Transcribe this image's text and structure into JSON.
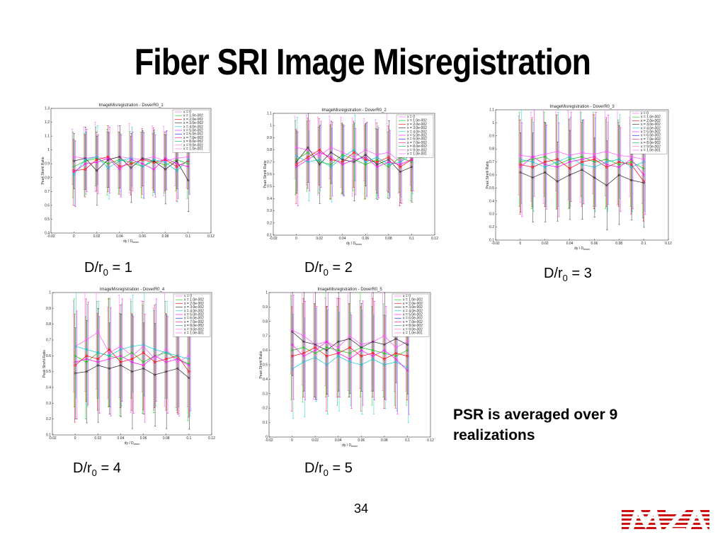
{
  "slide": {
    "title": "Fiber SRI Image Misregistration",
    "note_line1": "PSR is averaged over 9",
    "note_line2": "realizations",
    "page_number": "34"
  },
  "captions": [
    {
      "prefix": "D/r",
      "sub": "0",
      "suffix": " = 1"
    },
    {
      "prefix": "D/r",
      "sub": "0",
      "suffix": " = 2"
    },
    {
      "prefix": "D/r",
      "sub": "0",
      "suffix": " = 3"
    },
    {
      "prefix": "D/r",
      "sub": "0",
      "suffix": " = 4"
    },
    {
      "prefix": "D/r",
      "sub": "0",
      "suffix": " = 5"
    }
  ],
  "colors": {
    "series": [
      "#ff55ff",
      "#00cc00",
      "#ff0000",
      "#222222",
      "#00cccc",
      "#ff00ff",
      "#0000ff",
      "#ff0080",
      "#00aa66",
      "#ff66cc"
    ],
    "logo_red": "#cc1111"
  },
  "chart_data": [
    {
      "type": "line",
      "title": "ImageMisregistration - DoverR0_1",
      "xlabel": "dy / D",
      "xlabel_sub": "beam",
      "ylabel": "Peak Strehl Ratio",
      "xlim": [
        -0.02,
        0.12
      ],
      "ylim": [
        0.4,
        1.3
      ],
      "xticks": [
        "-0.02",
        "0",
        "0.02",
        "0.04",
        "0.06",
        "0.08",
        "0.1",
        "0.12"
      ],
      "yticks": [
        "0.4",
        "0.5",
        "0.6",
        "0.7",
        "0.8",
        "0.9",
        "1",
        "1.1",
        "1.2",
        "1.3"
      ],
      "legend": [
        "x = 0",
        "x = 1.0e-002",
        "x = 2.0e-002",
        "x = 3.0e-002",
        "x = 4.0e-002",
        "x = 5.0e-002",
        "x = 6.0e-002",
        "x = 7.0e-002",
        "x = 8.0e-002",
        "x = 9.0e-002",
        "x = 1.0e-001"
      ],
      "x": [
        0,
        0.01,
        0.02,
        0.03,
        0.04,
        0.05,
        0.06,
        0.07,
        0.08,
        0.09,
        0.1
      ],
      "series": [
        {
          "values": [
            0.95,
            0.94,
            0.95,
            0.93,
            0.95,
            0.94,
            0.93,
            0.95,
            0.92,
            0.94,
            0.95
          ]
        },
        {
          "values": [
            0.88,
            0.92,
            0.94,
            0.9,
            0.93,
            0.91,
            0.88,
            0.92,
            0.89,
            0.93,
            0.9
          ]
        },
        {
          "values": [
            0.85,
            0.86,
            0.93,
            0.95,
            0.88,
            0.9,
            0.93,
            0.91,
            0.93,
            0.88,
            0.92
          ]
        },
        {
          "values": [
            0.92,
            0.94,
            0.85,
            0.93,
            0.95,
            0.87,
            0.94,
            0.92,
            0.86,
            0.92,
            0.78
          ]
        },
        {
          "values": [
            0.82,
            0.93,
            0.95,
            0.87,
            0.92,
            0.94,
            0.88,
            0.93,
            0.91,
            0.85,
            0.93
          ]
        },
        {
          "values": [
            0.84,
            0.9,
            0.91,
            0.94,
            0.86,
            0.93,
            0.9,
            0.86,
            0.94,
            0.9,
            0.88
          ]
        }
      ],
      "err": 0.25
    },
    {
      "type": "line",
      "title": "ImageMisregistration - DoverR0_2",
      "xlabel": "dy / D",
      "xlabel_sub": "beam",
      "ylabel": "Peak Strehl Ratio",
      "xlim": [
        -0.02,
        0.12
      ],
      "ylim": [
        0.1,
        1.1
      ],
      "xticks": [
        "-0.02",
        "0",
        "0.02",
        "0.04",
        "0.06",
        "0.08",
        "0.1",
        "0.12"
      ],
      "yticks": [
        "0.1",
        "0.2",
        "0.3",
        "0.4",
        "0.5",
        "0.6",
        "0.7",
        "0.8",
        "0.9",
        "1",
        "1.1"
      ],
      "legend": [
        "x = 0",
        "x = 1.0e-002",
        "x = 2.0e-002",
        "x = 3.0e-002",
        "x = 4.0e-002",
        "x = 5.0e-002",
        "x = 6.0e-002",
        "x = 7.0e-002",
        "x = 8.0e-002",
        "x = 9.0e-002",
        "x = 1.0e-001"
      ],
      "x": [
        0,
        0.01,
        0.02,
        0.03,
        0.04,
        0.05,
        0.06,
        0.07,
        0.08,
        0.09,
        0.1
      ],
      "series": [
        {
          "values": [
            0.82,
            0.8,
            0.75,
            0.82,
            0.78,
            0.74,
            0.8,
            0.76,
            0.78,
            0.7,
            0.8
          ]
        },
        {
          "values": [
            0.72,
            0.78,
            0.7,
            0.68,
            0.76,
            0.72,
            0.68,
            0.72,
            0.66,
            0.74,
            0.7
          ]
        },
        {
          "values": [
            0.68,
            0.74,
            0.8,
            0.72,
            0.7,
            0.78,
            0.72,
            0.7,
            0.74,
            0.66,
            0.72
          ]
        },
        {
          "values": [
            0.7,
            0.82,
            0.68,
            0.78,
            0.72,
            0.7,
            0.76,
            0.68,
            0.72,
            0.62,
            0.66
          ]
        },
        {
          "values": [
            0.75,
            0.7,
            0.72,
            0.66,
            0.74,
            0.8,
            0.7,
            0.74,
            0.68,
            0.7,
            0.76
          ]
        },
        {
          "values": [
            0.66,
            0.72,
            0.78,
            0.74,
            0.68,
            0.72,
            0.74,
            0.66,
            0.7,
            0.68,
            0.72
          ]
        }
      ],
      "err": 0.32
    },
    {
      "type": "line",
      "title": "ImageMisregistration - DoverR0_3",
      "xlabel": "dy / D",
      "xlabel_sub": "beam",
      "ylabel": "Peak Strehl Ratio",
      "xlim": [
        -0.02,
        0.12
      ],
      "ylim": [
        0.1,
        1.1
      ],
      "xticks": [
        "-0.02",
        "0",
        "0.02",
        "0.04",
        "0.06",
        "0.08",
        "0.1",
        "0.12"
      ],
      "yticks": [
        "0.1",
        "0.2",
        "0.3",
        "0.4",
        "0.5",
        "0.6",
        "0.7",
        "0.8",
        "0.9",
        "1",
        "1.1"
      ],
      "legend": [
        "x = 0",
        "x = 1.0e-002",
        "x = 2.0e-002",
        "x = 3.0e-002",
        "x = 4.0e-002",
        "x = 5.0e-002",
        "x = 6.0e-002",
        "x = 7.0e-002",
        "x = 8.0e-002",
        "x = 9.0e-002",
        "x = 1.0e-001"
      ],
      "x": [
        0,
        0.01,
        0.02,
        0.03,
        0.04,
        0.05,
        0.06,
        0.07,
        0.08,
        0.09,
        0.1
      ],
      "series": [
        {
          "values": [
            0.75,
            0.74,
            0.76,
            0.78,
            0.75,
            0.77,
            0.76,
            0.78,
            0.75,
            0.74,
            0.72
          ]
        },
        {
          "values": [
            0.7,
            0.72,
            0.74,
            0.68,
            0.72,
            0.74,
            0.7,
            0.72,
            0.68,
            0.7,
            0.65
          ]
        },
        {
          "values": [
            0.68,
            0.66,
            0.7,
            0.72,
            0.65,
            0.7,
            0.72,
            0.66,
            0.7,
            0.68,
            0.55
          ]
        },
        {
          "values": [
            0.62,
            0.58,
            0.62,
            0.55,
            0.6,
            0.64,
            0.58,
            0.52,
            0.6,
            0.56,
            0.54
          ]
        },
        {
          "values": [
            0.72,
            0.7,
            0.66,
            0.7,
            0.74,
            0.68,
            0.66,
            0.7,
            0.72,
            0.66,
            0.7
          ]
        },
        {
          "values": [
            0.66,
            0.74,
            0.68,
            0.66,
            0.7,
            0.72,
            0.74,
            0.68,
            0.66,
            0.72,
            0.6
          ]
        }
      ],
      "err": 0.38
    },
    {
      "type": "line",
      "title": "ImageMisregistration - DoverR0_4",
      "xlabel": "dy / D",
      "xlabel_sub": "beam",
      "ylabel": "Peak Strehl Ratio",
      "xlim": [
        -0.02,
        0.12
      ],
      "ylim": [
        0.1,
        1.0
      ],
      "xticks": [
        "-0.02",
        "0",
        "0.02",
        "0.04",
        "0.06",
        "0.08",
        "0.1",
        "0.12"
      ],
      "yticks": [
        "0.1",
        "0.2",
        "0.3",
        "0.4",
        "0.5",
        "0.6",
        "0.7",
        "0.8",
        "0.9",
        "1"
      ],
      "legend": [
        "x = 0",
        "x = 1.0e-002",
        "x = 2.0e-002",
        "x = 3.0e-002",
        "x = 4.0e-002",
        "x = 5.0e-002",
        "x = 6.0e-002",
        "x = 7.0e-002",
        "x = 8.0e-002",
        "x = 9.0e-002",
        "x = 1.0e-001"
      ],
      "x": [
        0,
        0.01,
        0.02,
        0.03,
        0.04,
        0.05,
        0.06,
        0.07,
        0.08,
        0.09,
        0.1
      ],
      "series": [
        {
          "values": [
            0.66,
            0.7,
            0.75,
            0.62,
            0.66,
            0.6,
            0.66,
            0.58,
            0.64,
            0.56,
            0.6
          ]
        },
        {
          "values": [
            0.6,
            0.56,
            0.62,
            0.6,
            0.58,
            0.62,
            0.56,
            0.6,
            0.62,
            0.58,
            0.55
          ]
        },
        {
          "values": [
            0.54,
            0.6,
            0.58,
            0.64,
            0.56,
            0.58,
            0.62,
            0.56,
            0.58,
            0.6,
            0.5
          ]
        },
        {
          "values": [
            0.49,
            0.5,
            0.54,
            0.52,
            0.54,
            0.5,
            0.52,
            0.48,
            0.5,
            0.52,
            0.46
          ]
        },
        {
          "values": [
            0.66,
            0.64,
            0.62,
            0.6,
            0.64,
            0.66,
            0.67,
            0.64,
            0.62,
            0.6,
            0.58
          ]
        },
        {
          "values": [
            0.56,
            0.58,
            0.56,
            0.58,
            0.6,
            0.56,
            0.54,
            0.6,
            0.56,
            0.58,
            0.54
          ]
        }
      ],
      "err": 0.36
    },
    {
      "type": "line",
      "title": "ImageMisregistration - DoverR0_5",
      "xlabel": "dy / D",
      "xlabel_sub": "beam",
      "ylabel": "Peak Strehl Ratio",
      "xlim": [
        -0.02,
        0.12
      ],
      "ylim": [
        0,
        1.0
      ],
      "xticks": [
        "-0.02",
        "0",
        "0.02",
        "0.04",
        "0.06",
        "0.08",
        "0.1",
        "0.12"
      ],
      "yticks": [
        "0",
        "0.1",
        "0.2",
        "0.3",
        "0.4",
        "0.5",
        "0.6",
        "0.7",
        "0.8",
        "0.9",
        "1"
      ],
      "legend": [
        "x = 0",
        "x = 1.0e-002",
        "x = 2.0e-002",
        "x = 3.0e-002",
        "x = 4.0e-002",
        "x = 5.0e-002",
        "x = 6.0e-002",
        "x = 7.0e-002",
        "x = 8.0e-002",
        "x = 9.0e-002",
        "x = 1.0e-001"
      ],
      "x": [
        0,
        0.01,
        0.02,
        0.03,
        0.04,
        0.05,
        0.06,
        0.07,
        0.08,
        0.09,
        0.1
      ],
      "series": [
        {
          "values": [
            0.74,
            0.7,
            0.64,
            0.66,
            0.62,
            0.7,
            0.64,
            0.66,
            0.7,
            0.62,
            0.66
          ]
        },
        {
          "values": [
            0.6,
            0.62,
            0.58,
            0.62,
            0.6,
            0.58,
            0.62,
            0.6,
            0.58,
            0.56,
            0.6
          ]
        },
        {
          "values": [
            0.56,
            0.58,
            0.62,
            0.56,
            0.58,
            0.62,
            0.56,
            0.58,
            0.54,
            0.58,
            0.56
          ]
        },
        {
          "values": [
            0.73,
            0.66,
            0.64,
            0.6,
            0.66,
            0.68,
            0.62,
            0.66,
            0.64,
            0.68,
            0.64
          ]
        },
        {
          "values": [
            0.47,
            0.52,
            0.55,
            0.5,
            0.56,
            0.52,
            0.5,
            0.54,
            0.5,
            0.52,
            0.48
          ]
        },
        {
          "values": [
            0.64,
            0.56,
            0.6,
            0.66,
            0.58,
            0.54,
            0.6,
            0.56,
            0.6,
            0.54,
            0.46
          ]
        }
      ],
      "err": 0.38
    }
  ]
}
